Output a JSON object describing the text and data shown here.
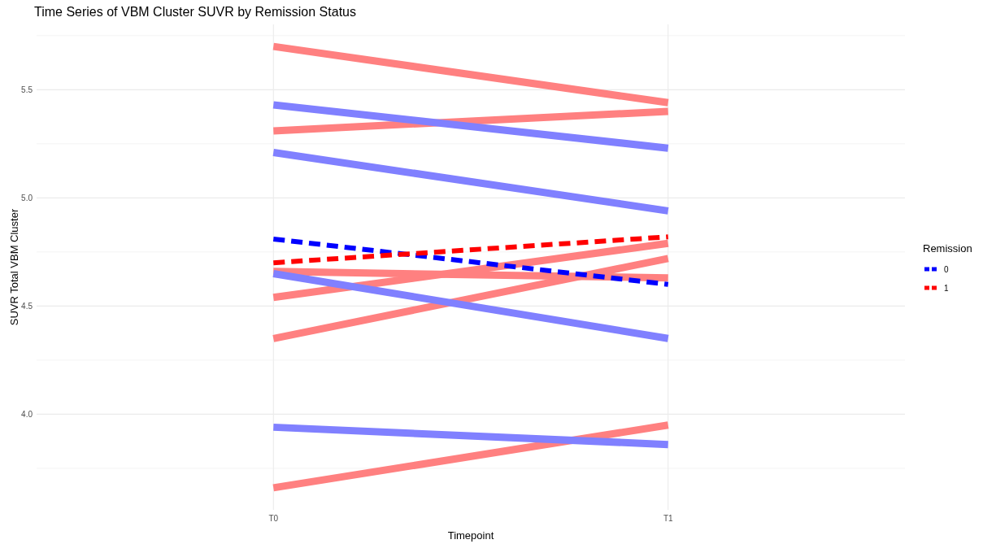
{
  "chart_data": {
    "type": "line",
    "title": "Time Series of VBM Cluster SUVR by Remission Status",
    "xlabel": "Timepoint",
    "ylabel": "SUVR Total VBM Cluster",
    "legend_title": "Remission",
    "categories": [
      "T0",
      "T1"
    ],
    "series": [
      {
        "color": "#ff8080",
        "values": [
          5.7,
          5.44
        ]
      },
      {
        "color": "#ff8080",
        "values": [
          5.31,
          5.4
        ]
      },
      {
        "color": "#ff8080",
        "values": [
          4.66,
          4.63
        ]
      },
      {
        "color": "#ff8080",
        "values": [
          4.54,
          4.79
        ]
      },
      {
        "color": "#ff8080",
        "values": [
          4.35,
          4.72
        ]
      },
      {
        "color": "#ff8080",
        "values": [
          3.66,
          3.95
        ]
      },
      {
        "color": "#8080ff",
        "values": [
          5.43,
          5.23
        ]
      },
      {
        "color": "#8080ff",
        "values": [
          5.21,
          4.94
        ]
      },
      {
        "color": "#8080ff",
        "values": [
          4.65,
          4.35
        ]
      },
      {
        "color": "#8080ff",
        "values": [
          3.94,
          3.86
        ]
      },
      {
        "name": "0",
        "color": "#0000ff",
        "line_style": "dashed",
        "values": [
          4.81,
          4.6
        ]
      },
      {
        "name": "1",
        "color": "#ff0000",
        "line_style": "dashed",
        "values": [
          4.7,
          4.82
        ]
      }
    ],
    "ylim": [
      3.558,
      5.802
    ],
    "yticks": [
      {
        "value": 3.75,
        "label": null
      },
      {
        "value": 4,
        "label": "4.0"
      },
      {
        "value": 4.25,
        "label": null
      },
      4.5,
      {
        "value": 4.75,
        "label": null
      },
      {
        "value": 5,
        "label": "5.0"
      },
      {
        "value": 5.25,
        "label": null
      },
      5.5,
      {
        "value": 5.75,
        "label": null
      }
    ],
    "grid": true,
    "legend": "right",
    "line_style": "solid"
  }
}
